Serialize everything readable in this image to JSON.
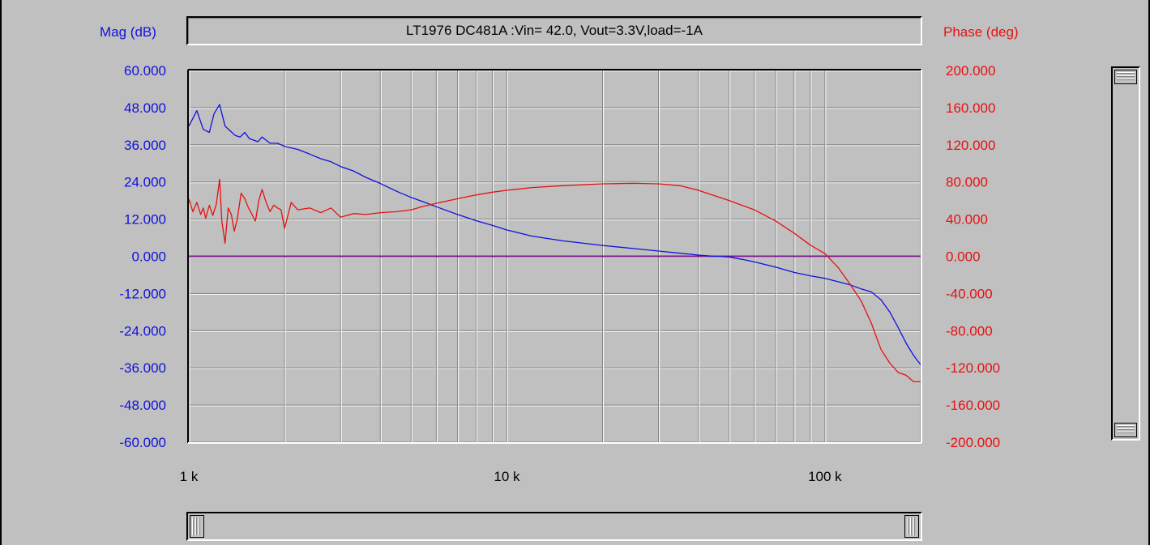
{
  "chart_data": {
    "type": "line",
    "title": "LT1976 DC481A :Vin= 42.0, Vout=3.3V,load=-1A",
    "xscale": "log",
    "xlim": [
      1000,
      200000
    ],
    "x_tick_values": [
      1000,
      10000,
      100000
    ],
    "x_tick_labels": [
      "1 k",
      "10 k",
      "100 k"
    ],
    "y_left": {
      "label": "Mag (dB)",
      "lim": [
        -60,
        60
      ],
      "ticks": [
        "60.000",
        "48.000",
        "36.000",
        "24.000",
        "12.000",
        "0.000",
        "-12.000",
        "-24.000",
        "-36.000",
        "-48.000",
        "-60.000"
      ],
      "color": "#1010e0"
    },
    "y_right": {
      "label": "Phase (deg)",
      "lim": [
        -200,
        200
      ],
      "ticks": [
        "200.000",
        "160.000",
        "120.000",
        "80.000",
        "40.000",
        "0.000",
        "-40.000",
        "-80.000",
        "-120.000",
        "-160.000",
        "-200.000"
      ],
      "color": "#e81010"
    },
    "grid": true,
    "series": [
      {
        "axis": "left",
        "color": "#1010e0",
        "x": [
          1000,
          1060,
          1110,
          1160,
          1200,
          1250,
          1300,
          1350,
          1400,
          1450,
          1500,
          1550,
          1600,
          1650,
          1700,
          1750,
          1800,
          1900,
          2000,
          2200,
          2400,
          2600,
          2800,
          3000,
          3300,
          3600,
          4000,
          4500,
          5000,
          5500,
          6000,
          7000,
          8000,
          9000,
          10000,
          12000,
          15000,
          20000,
          25000,
          30000,
          35000,
          40000,
          45000,
          50000,
          55000,
          60000,
          70000,
          80000,
          90000,
          100000,
          110000,
          120000,
          130000,
          140000,
          150000,
          160000,
          170000,
          180000,
          190000,
          200000
        ],
        "y": [
          42,
          47,
          41,
          40,
          46,
          49,
          42,
          40.5,
          39,
          38.5,
          40,
          38,
          37.5,
          37,
          38.5,
          37.5,
          36.5,
          36.5,
          35.5,
          34.5,
          33,
          31.5,
          30.5,
          29,
          27.5,
          25.5,
          23.5,
          21,
          19,
          17.5,
          16,
          13.5,
          11.5,
          10,
          8.5,
          6.5,
          5,
          3.5,
          2.5,
          1.7,
          1,
          0.4,
          0,
          -0.2,
          -1,
          -1.8,
          -3.5,
          -5.2,
          -6.3,
          -7.1,
          -8.2,
          -9.2,
          -10.5,
          -11.5,
          -14,
          -18,
          -23,
          -28,
          -32,
          -35
        ]
      },
      {
        "axis": "right",
        "color": "#e81010",
        "x": [
          1000,
          1030,
          1060,
          1090,
          1110,
          1130,
          1160,
          1190,
          1220,
          1250,
          1270,
          1300,
          1330,
          1360,
          1390,
          1420,
          1460,
          1500,
          1540,
          1580,
          1620,
          1660,
          1700,
          1750,
          1800,
          1850,
          1900,
          1950,
          2000,
          2100,
          2200,
          2400,
          2600,
          2800,
          3000,
          3300,
          3600,
          4000,
          4500,
          5000,
          5500,
          6000,
          7000,
          8000,
          9000,
          10000,
          12000,
          15000,
          20000,
          25000,
          30000,
          35000,
          40000,
          50000,
          60000,
          70000,
          80000,
          90000,
          100000,
          110000,
          120000,
          130000,
          140000,
          150000,
          160000,
          170000,
          180000,
          190000,
          200000
        ],
        "y": [
          62,
          48,
          58,
          45,
          52,
          41,
          55,
          44,
          56,
          83,
          38,
          14,
          52,
          45,
          27,
          40,
          68,
          62,
          52,
          45,
          38,
          60,
          72,
          58,
          48,
          55,
          52,
          50,
          30,
          58,
          50,
          52,
          47,
          52,
          42,
          46,
          45,
          47,
          48,
          50,
          54,
          57,
          62,
          66,
          69,
          71,
          74,
          76,
          78,
          78.5,
          78,
          76,
          71,
          60,
          50,
          38,
          25,
          12,
          3,
          -12,
          -30,
          -48,
          -72,
          -100,
          -115,
          -125,
          -128,
          -135,
          -135
        ]
      }
    ]
  },
  "scrollbars": {
    "vertical": "vertical-scrollbar",
    "horizontal": "horizontal-scrollbar"
  }
}
